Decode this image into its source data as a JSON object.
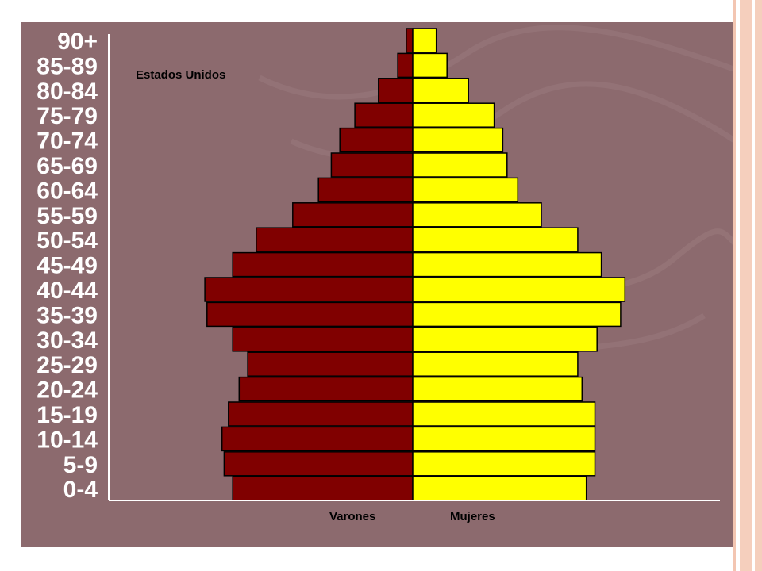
{
  "chart_data": {
    "type": "bar",
    "orientation": "horizontal-pyramid",
    "title": "Estados Unidos",
    "categories": [
      "90+",
      "85-89",
      "80-84",
      "75-79",
      "70-74",
      "65-69",
      "60-64",
      "55-59",
      "50-54",
      "45-49",
      "40-44",
      "35-39",
      "30-34",
      "25-29",
      "20-24",
      "15-19",
      "10-14",
      "5-9",
      "0-4"
    ],
    "series": [
      {
        "name": "Varones",
        "color": "#800000",
        "values": [
          0.3,
          0.7,
          1.6,
          2.7,
          3.4,
          3.8,
          4.4,
          5.6,
          7.3,
          8.4,
          9.7,
          9.6,
          8.4,
          7.7,
          8.1,
          8.6,
          8.9,
          8.8,
          8.4
        ]
      },
      {
        "name": "Mujeres",
        "color": "#ffff00",
        "values": [
          1.1,
          1.6,
          2.6,
          3.8,
          4.2,
          4.4,
          4.9,
          6.0,
          7.7,
          8.8,
          9.9,
          9.7,
          8.6,
          7.7,
          7.9,
          8.5,
          8.5,
          8.5,
          8.1
        ]
      }
    ],
    "xlabel": "",
    "ylabel": "",
    "grid": false,
    "legend": "bottom-center"
  }
}
